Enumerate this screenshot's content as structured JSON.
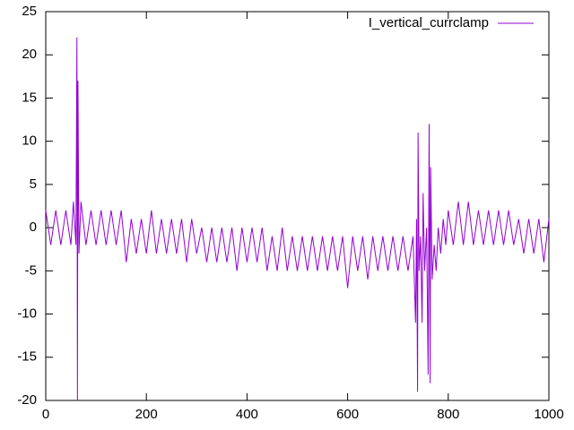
{
  "chart_data": {
    "type": "line",
    "x": [
      0,
      10,
      20,
      30,
      40,
      50,
      55,
      60,
      62,
      63,
      64,
      66,
      70,
      80,
      90,
      100,
      110,
      120,
      130,
      140,
      150,
      160,
      170,
      180,
      190,
      200,
      210,
      220,
      230,
      240,
      250,
      260,
      270,
      280,
      290,
      300,
      310,
      320,
      330,
      340,
      350,
      360,
      370,
      380,
      390,
      400,
      410,
      420,
      430,
      440,
      450,
      460,
      470,
      480,
      490,
      500,
      510,
      520,
      530,
      540,
      550,
      560,
      570,
      580,
      590,
      600,
      610,
      620,
      630,
      640,
      650,
      660,
      670,
      680,
      690,
      700,
      710,
      720,
      730,
      735,
      737,
      739,
      740,
      742,
      745,
      748,
      750,
      753,
      757,
      760,
      762,
      764,
      765,
      768,
      772,
      776,
      780,
      785,
      790,
      795,
      800,
      810,
      820,
      830,
      840,
      850,
      860,
      870,
      880,
      890,
      900,
      910,
      920,
      930,
      940,
      950,
      960,
      970,
      980,
      990,
      1000
    ],
    "series": [
      {
        "name": "I_vertical_currclamp",
        "color": "#9400d3",
        "values": [
          2,
          -2,
          2,
          -2,
          2,
          -2,
          3,
          -2,
          22,
          -20,
          17,
          -3,
          3,
          -2,
          2,
          -2,
          2,
          -2,
          2,
          -2,
          2,
          -4,
          1,
          -3,
          1,
          -3,
          2,
          -3,
          1,
          -3,
          1,
          -3,
          1,
          -4,
          1,
          -3,
          0,
          -4,
          0,
          -4,
          0,
          -4,
          0,
          -5,
          0,
          -4,
          0,
          -4,
          0,
          -5,
          -1,
          -5,
          0,
          -5,
          -1,
          -5,
          -1,
          -5,
          -1,
          -5,
          -1,
          -5,
          -1,
          -5,
          -1,
          -7,
          -1,
          -5,
          -1,
          -6,
          -1,
          -5,
          -1,
          -5,
          -1,
          -5,
          -1,
          -5,
          -1,
          -11,
          1,
          -19,
          11,
          -5,
          -1,
          -11,
          4,
          -5,
          0,
          -17,
          12,
          -18,
          7,
          -6,
          -2,
          -5,
          0,
          -3,
          1,
          -2,
          2,
          -2,
          3,
          -2,
          3,
          -2,
          2,
          -2,
          2,
          -2,
          2,
          -2,
          2,
          -2,
          1,
          -3,
          1,
          -3,
          1,
          -4,
          1
        ]
      }
    ],
    "xlim": [
      0,
      1000
    ],
    "ylim": [
      -20,
      25
    ],
    "xticks": [
      0,
      200,
      400,
      600,
      800,
      1000
    ],
    "yticks": [
      -20,
      -15,
      -10,
      -5,
      0,
      5,
      10,
      15,
      20,
      25
    ]
  }
}
